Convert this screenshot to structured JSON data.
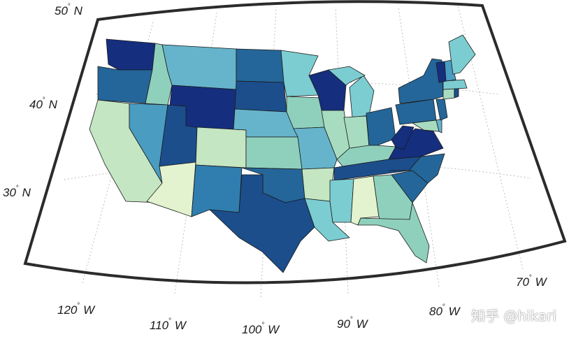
{
  "map": {
    "lat_labels": [
      {
        "deg": "50",
        "dir": "N"
      },
      {
        "deg": "40",
        "dir": "N"
      },
      {
        "deg": "30",
        "dir": "N"
      }
    ],
    "lon_labels": [
      {
        "deg": "120",
        "dir": "W"
      },
      {
        "deg": "110",
        "dir": "W"
      },
      {
        "deg": "100",
        "dir": "W"
      },
      {
        "deg": "90",
        "dir": "W"
      },
      {
        "deg": "80",
        "dir": "W"
      },
      {
        "deg": "70",
        "dir": "W"
      }
    ],
    "palette": [
      "#e3f2cf",
      "#c4e6c3",
      "#a8dcc0",
      "#8fd0bd",
      "#7ccdd1",
      "#65b4cb",
      "#4a9cc1",
      "#2f7eaf",
      "#246699",
      "#1c4e8c",
      "#152f7e",
      "#0f2a78"
    ],
    "watermark": "知乎 @hikari"
  }
}
